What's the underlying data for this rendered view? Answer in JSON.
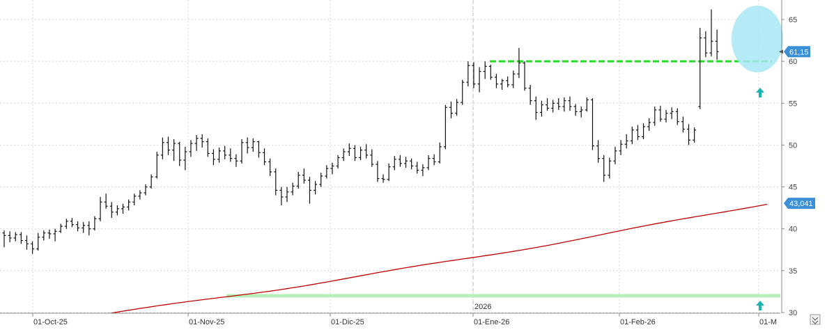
{
  "chart_data": {
    "type": "ohlc",
    "year_marker": "2026",
    "x_tick_labels": [
      "01-Oct-25",
      "01-Nov-25",
      "01-Dic-25",
      "01-Ene-26",
      "01-Feb-26",
      "01-M"
    ],
    "y_ticks": [
      30,
      35,
      40,
      45,
      50,
      55,
      60,
      65
    ],
    "ylim": [
      30,
      67
    ],
    "grid": true,
    "price_label": "61,15",
    "ma_label": "43,041",
    "colors": {
      "bars": "#111111",
      "moving_average": "#c00000",
      "resistance": "#22dd22",
      "support": "#b8f0b8",
      "highlight": "#a8e8f4",
      "arrow": "#1ab5b0",
      "price_label_bg": "#3a8fd6"
    },
    "resistance_level": 60,
    "support_level": 32,
    "moving_average_range": [
      29.8,
      43.04
    ],
    "bars": [
      [
        39.5,
        39.8,
        37.8,
        39.2
      ],
      [
        39.2,
        39.7,
        38.4,
        38.9
      ],
      [
        38.9,
        39.6,
        38.5,
        39.3
      ],
      [
        39.3,
        39.6,
        38.2,
        38.6
      ],
      [
        38.6,
        39.2,
        37.5,
        38.2
      ],
      [
        38.2,
        38.5,
        37.0,
        37.6
      ],
      [
        37.6,
        39.5,
        37.4,
        39.0
      ],
      [
        39.0,
        39.8,
        38.6,
        39.5
      ],
      [
        39.5,
        39.9,
        38.8,
        39.4
      ],
      [
        39.4,
        40.0,
        38.5,
        39.7
      ],
      [
        39.7,
        40.6,
        39.5,
        40.3
      ],
      [
        40.3,
        41.2,
        40.0,
        40.9
      ],
      [
        40.9,
        41.3,
        40.2,
        40.5
      ],
      [
        40.5,
        40.9,
        39.7,
        40.1
      ],
      [
        40.1,
        40.8,
        39.5,
        40.4
      ],
      [
        40.4,
        40.9,
        39.2,
        40.0
      ],
      [
        40.0,
        41.5,
        39.8,
        41.2
      ],
      [
        41.2,
        43.8,
        40.9,
        43.2
      ],
      [
        43.2,
        44.2,
        42.4,
        42.7
      ],
      [
        42.7,
        43.2,
        41.3,
        42.0
      ],
      [
        42.0,
        42.8,
        41.6,
        42.4
      ],
      [
        42.4,
        43.0,
        41.8,
        42.6
      ],
      [
        42.6,
        43.5,
        42.2,
        43.2
      ],
      [
        43.2,
        44.2,
        42.8,
        43.9
      ],
      [
        43.9,
        44.6,
        43.5,
        44.3
      ],
      [
        44.3,
        45.3,
        44.0,
        45.0
      ],
      [
        45.0,
        46.5,
        44.8,
        46.2
      ],
      [
        46.2,
        49.2,
        46.0,
        48.8
      ],
      [
        48.8,
        50.9,
        48.3,
        50.3
      ],
      [
        50.3,
        51.0,
        48.8,
        49.4
      ],
      [
        49.4,
        50.7,
        48.1,
        50.2
      ],
      [
        50.2,
        50.4,
        47.5,
        48.2
      ],
      [
        48.2,
        49.8,
        47.0,
        49.2
      ],
      [
        49.2,
        50.6,
        48.6,
        50.2
      ],
      [
        50.2,
        51.2,
        49.3,
        50.8
      ],
      [
        50.8,
        51.3,
        49.7,
        50.4
      ],
      [
        50.4,
        50.8,
        48.6,
        49.0
      ],
      [
        49.0,
        49.5,
        47.6,
        48.3
      ],
      [
        48.3,
        49.7,
        47.9,
        49.3
      ],
      [
        49.3,
        49.9,
        48.3,
        48.8
      ],
      [
        48.8,
        49.6,
        48.0,
        48.4
      ],
      [
        48.4,
        48.9,
        47.4,
        48.1
      ],
      [
        48.1,
        50.7,
        47.8,
        50.3
      ],
      [
        50.3,
        50.9,
        49.0,
        49.7
      ],
      [
        49.7,
        50.8,
        49.2,
        50.4
      ],
      [
        50.4,
        50.5,
        48.5,
        49.1
      ],
      [
        49.1,
        49.6,
        47.6,
        48.0
      ],
      [
        48.0,
        48.4,
        46.3,
        46.8
      ],
      [
        46.8,
        47.2,
        44.0,
        44.6
      ],
      [
        44.6,
        45.0,
        42.8,
        43.8
      ],
      [
        43.8,
        45.0,
        43.2,
        44.4
      ],
      [
        44.4,
        45.5,
        44.0,
        45.1
      ],
      [
        45.1,
        46.8,
        44.8,
        46.4
      ],
      [
        46.4,
        47.2,
        45.4,
        45.8
      ],
      [
        45.8,
        46.2,
        43.0,
        44.6
      ],
      [
        44.6,
        45.7,
        44.1,
        45.3
      ],
      [
        45.3,
        46.7,
        45.0,
        46.3
      ],
      [
        46.3,
        47.6,
        46.0,
        47.2
      ],
      [
        47.2,
        47.9,
        46.5,
        47.5
      ],
      [
        47.5,
        48.8,
        47.2,
        48.5
      ],
      [
        48.5,
        49.6,
        48.1,
        49.2
      ],
      [
        49.2,
        50.2,
        48.7,
        49.6
      ],
      [
        49.6,
        50.0,
        48.1,
        48.5
      ],
      [
        48.5,
        49.8,
        48.2,
        49.4
      ],
      [
        49.4,
        50.1,
        48.4,
        48.8
      ],
      [
        48.8,
        49.5,
        47.4,
        47.7
      ],
      [
        47.7,
        48.1,
        45.6,
        46.0
      ],
      [
        46.0,
        46.5,
        45.5,
        45.9
      ],
      [
        45.9,
        47.8,
        45.7,
        47.4
      ],
      [
        47.4,
        48.7,
        47.0,
        48.3
      ],
      [
        48.3,
        48.8,
        47.4,
        47.8
      ],
      [
        47.8,
        48.6,
        47.3,
        48.1
      ],
      [
        48.1,
        48.4,
        47.1,
        47.5
      ],
      [
        47.5,
        48.0,
        46.6,
        47.0
      ],
      [
        47.0,
        47.7,
        46.3,
        47.3
      ],
      [
        47.3,
        48.8,
        47.0,
        48.4
      ],
      [
        48.4,
        48.9,
        47.6,
        48.0
      ],
      [
        48.0,
        50.3,
        47.8,
        49.8
      ],
      [
        49.8,
        54.8,
        49.5,
        54.5
      ],
      [
        54.5,
        55.2,
        53.2,
        53.8
      ],
      [
        53.8,
        55.5,
        53.5,
        55.1
      ],
      [
        55.1,
        57.8,
        54.8,
        57.5
      ],
      [
        57.5,
        60.0,
        57.0,
        59.5
      ],
      [
        59.5,
        59.9,
        56.8,
        57.3
      ],
      [
        57.3,
        59.3,
        56.3,
        58.8
      ],
      [
        58.8,
        60.0,
        57.9,
        59.4
      ],
      [
        59.4,
        59.6,
        57.8,
        58.1
      ],
      [
        58.1,
        58.5,
        56.8,
        57.3
      ],
      [
        57.3,
        57.9,
        56.6,
        57.7
      ],
      [
        57.7,
        58.2,
        56.9,
        57.2
      ],
      [
        57.2,
        58.9,
        56.8,
        58.5
      ],
      [
        58.5,
        61.6,
        58.0,
        59.8
      ],
      [
        59.8,
        60.0,
        56.5,
        56.8
      ],
      [
        56.8,
        57.2,
        54.8,
        55.3
      ],
      [
        55.3,
        55.8,
        53.0,
        53.9
      ],
      [
        53.9,
        55.3,
        53.4,
        54.8
      ],
      [
        54.8,
        55.6,
        54.1,
        54.4
      ],
      [
        54.4,
        55.4,
        53.9,
        55.0
      ],
      [
        55.0,
        55.6,
        54.2,
        54.6
      ],
      [
        54.6,
        55.7,
        54.0,
        55.3
      ],
      [
        55.3,
        55.8,
        54.1,
        54.6
      ],
      [
        54.6,
        54.9,
        53.5,
        54.0
      ],
      [
        54.0,
        54.6,
        53.3,
        54.2
      ],
      [
        54.2,
        55.7,
        54.0,
        55.4
      ],
      [
        55.4,
        55.6,
        49.4,
        49.9
      ],
      [
        49.9,
        50.6,
        47.9,
        48.4
      ],
      [
        48.4,
        48.8,
        45.6,
        46.4
      ],
      [
        46.4,
        48.5,
        46.0,
        48.1
      ],
      [
        48.1,
        49.8,
        47.7,
        49.3
      ],
      [
        49.3,
        50.6,
        48.8,
        50.1
      ],
      [
        50.1,
        51.3,
        49.6,
        50.5
      ],
      [
        50.5,
        52.2,
        50.1,
        51.8
      ],
      [
        51.8,
        52.4,
        50.6,
        51.0
      ],
      [
        51.0,
        52.6,
        50.7,
        52.2
      ],
      [
        52.2,
        53.2,
        51.7,
        52.7
      ],
      [
        52.7,
        54.6,
        52.3,
        54.2
      ],
      [
        54.2,
        54.7,
        52.8,
        53.1
      ],
      [
        53.1,
        54.2,
        52.7,
        53.8
      ],
      [
        53.8,
        54.5,
        53.1,
        54.0
      ],
      [
        54.0,
        54.4,
        52.4,
        52.8
      ],
      [
        52.8,
        53.4,
        51.5,
        51.9
      ],
      [
        51.9,
        52.5,
        50.0,
        50.6
      ],
      [
        50.6,
        52.1,
        50.3,
        51.8
      ],
      [
        54.6,
        64.0,
        54.3,
        62.8
      ],
      [
        62.8,
        63.6,
        60.5,
        61.0
      ],
      [
        61.0,
        66.2,
        60.6,
        62.4
      ],
      [
        62.4,
        63.8,
        60.2,
        61.15
      ]
    ]
  }
}
